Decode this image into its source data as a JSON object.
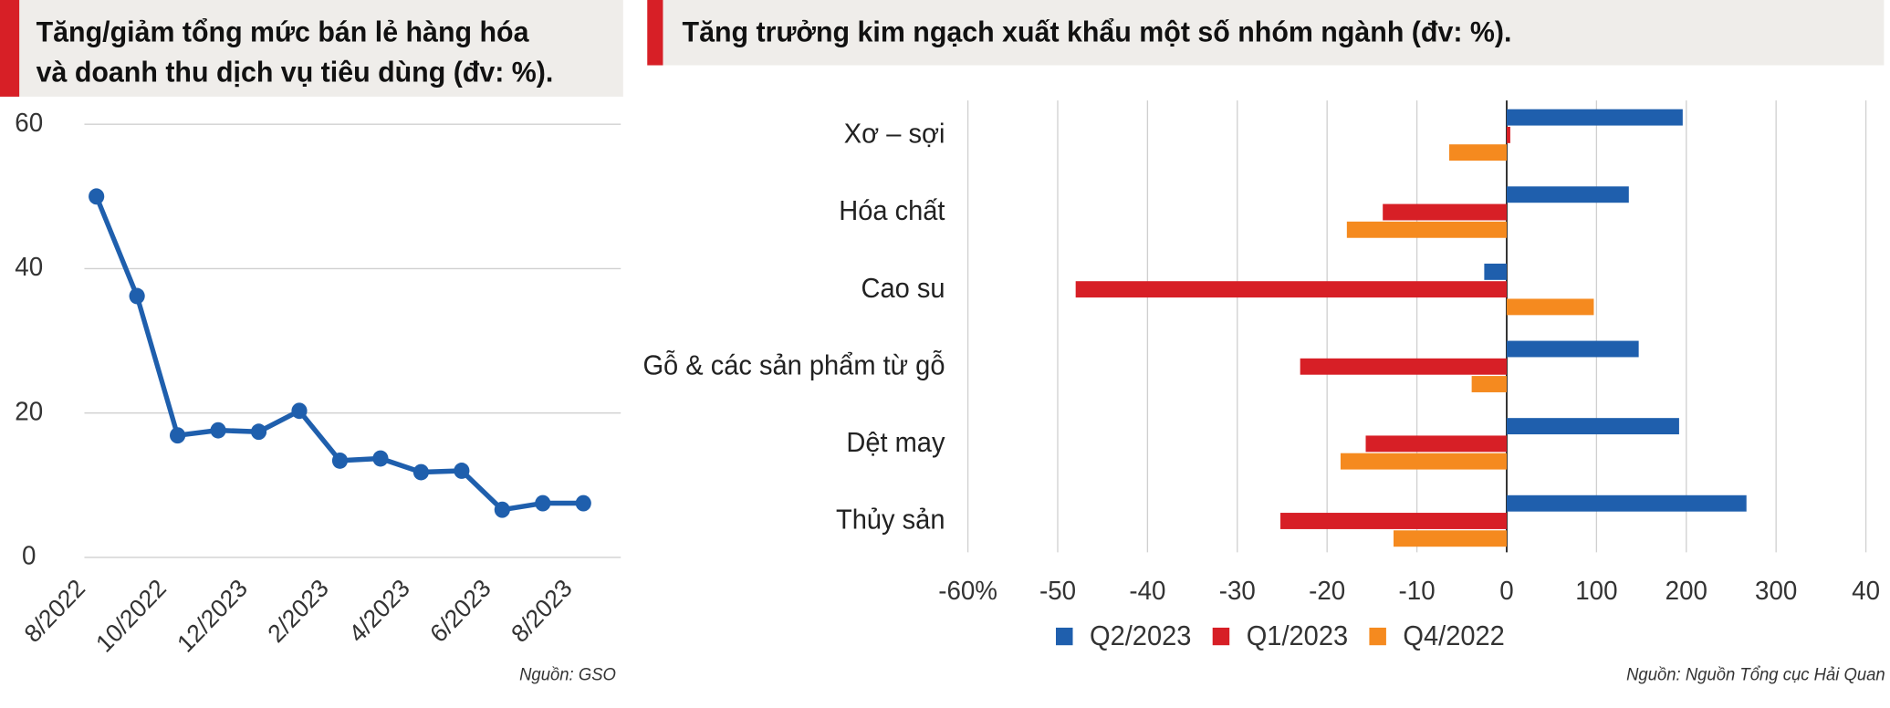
{
  "chart_data": [
    {
      "type": "line",
      "title_lines": [
        "Tăng/giảm tổng mức bán lẻ hàng hóa",
        "và doanh thu dịch vụ tiêu dùng (đv: %)."
      ],
      "categories": [
        "8/2022",
        null,
        "10/2022",
        null,
        "12/2023",
        null,
        "2/2023",
        null,
        "4/2023",
        null,
        "6/2023",
        null,
        "8/2023"
      ],
      "values": [
        50,
        36.2,
        16.9,
        17.6,
        17.4,
        20.3,
        13.4,
        13.7,
        11.8,
        12.0,
        6.6,
        7.5,
        7.5
      ],
      "color": "#1f5fad",
      "ylim": [
        0,
        60
      ],
      "yticks": [
        0,
        20,
        40,
        60
      ],
      "grid": true,
      "source": "Nguồn: GSO"
    },
    {
      "type": "barh",
      "title": "Tăng trưởng kim ngạch xuất khẩu một số nhóm ngành (đv: %).",
      "categories": [
        "Xơ – sợi",
        "Hóa chất",
        "Cao su",
        "Gỗ & các sản phẩm từ gỗ",
        "Dệt may",
        "Thủy sản"
      ],
      "series": [
        {
          "name": "Q2/2023",
          "color": "#1f5fad",
          "values": [
            196,
            136,
            -2.5,
            147,
            192,
            267
          ]
        },
        {
          "name": "Q1/2023",
          "color": "#d71f26",
          "values": [
            4,
            -13.8,
            -48,
            -23,
            -15.7,
            -25.2
          ]
        },
        {
          "name": "Q4/2022",
          "color": "#f58a1f",
          "values": [
            -6.4,
            -17.8,
            97,
            -3.9,
            -18.5,
            -12.6
          ]
        }
      ],
      "xlim": [
        -60,
        400
      ],
      "xticks": [
        {
          "value": -60,
          "label": "-60%"
        },
        -50,
        -40,
        -30,
        -20,
        -10,
        0,
        100,
        200,
        300,
        {
          "value": 400,
          "label": "40"
        }
      ],
      "grid": true,
      "legend": "bottom",
      "source": "Nguồn: Nguồn Tổng cục Hải Quan"
    }
  ]
}
